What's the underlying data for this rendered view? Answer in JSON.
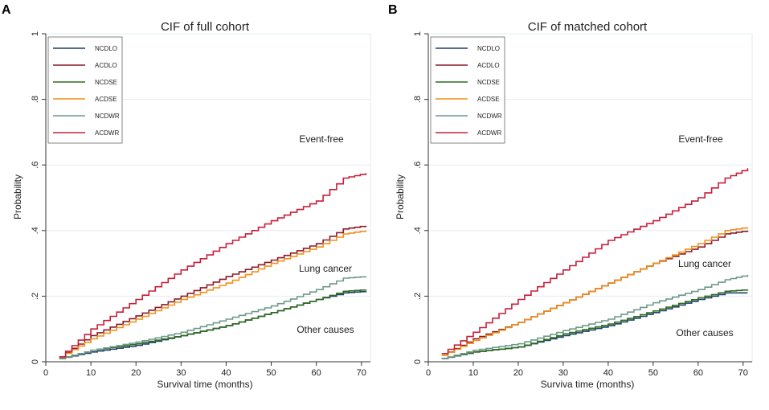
{
  "colors": {
    "NCDLO": "#1f3f6b",
    "ACDLO": "#8b1a2a",
    "NCDSE": "#2e6b1f",
    "ACDSE": "#f0901a",
    "NCDWR": "#6f9a8a",
    "ACDWR": "#c81e3a"
  },
  "chart_data": [
    {
      "panel": "A",
      "type": "line",
      "step": true,
      "title": "CIF of full cohort",
      "xlabel": "Survival time (months)",
      "ylabel": "Probability",
      "xlim": [
        0,
        72
      ],
      "ylim": [
        0,
        1
      ],
      "xticks": [
        "0",
        "10",
        "20",
        "30",
        "40",
        "50",
        "60",
        "70"
      ],
      "yticks": [
        "0",
        ".2",
        ".4",
        ".6",
        ".8",
        "1"
      ],
      "legend": [
        "NCDLO",
        "ACDLO",
        "NCDSE",
        "ACDSE",
        "NCDWR",
        "ACDWR"
      ],
      "annotations": [
        "Event-free",
        "Lung cancer",
        "Other causes"
      ],
      "series": [
        {
          "name": "NCDLO",
          "x": [
            3,
            10,
            20,
            30,
            40,
            50,
            60,
            66,
            71
          ],
          "values": [
            0.01,
            0.03,
            0.05,
            0.08,
            0.11,
            0.15,
            0.19,
            0.21,
            0.215
          ]
        },
        {
          "name": "ACDLO",
          "x": [
            3,
            10,
            20,
            30,
            40,
            50,
            60,
            66,
            71
          ],
          "values": [
            0.015,
            0.08,
            0.14,
            0.2,
            0.26,
            0.31,
            0.36,
            0.405,
            0.415
          ]
        },
        {
          "name": "NCDSE",
          "x": [
            3,
            10,
            20,
            30,
            40,
            50,
            60,
            66,
            71
          ],
          "values": [
            0.01,
            0.035,
            0.055,
            0.08,
            0.11,
            0.15,
            0.19,
            0.215,
            0.22
          ]
        },
        {
          "name": "ACDSE",
          "x": [
            3,
            10,
            20,
            30,
            40,
            50,
            60,
            66,
            71
          ],
          "values": [
            0.015,
            0.07,
            0.13,
            0.19,
            0.24,
            0.3,
            0.35,
            0.39,
            0.4
          ]
        },
        {
          "name": "NCDWR",
          "x": [
            3,
            10,
            20,
            30,
            40,
            50,
            60,
            66,
            71
          ],
          "values": [
            0.01,
            0.035,
            0.06,
            0.09,
            0.13,
            0.17,
            0.22,
            0.255,
            0.26
          ]
        },
        {
          "name": "ACDWR",
          "x": [
            3,
            10,
            20,
            30,
            40,
            50,
            60,
            66,
            71
          ],
          "values": [
            0.015,
            0.1,
            0.19,
            0.28,
            0.36,
            0.43,
            0.49,
            0.56,
            0.575
          ]
        }
      ]
    },
    {
      "panel": "B",
      "type": "line",
      "step": true,
      "title": "CIF of matched cohort",
      "xlabel": "Surviva time (months)",
      "ylabel": "Probability",
      "xlim": [
        0,
        72
      ],
      "ylim": [
        0,
        1
      ],
      "xticks": [
        "0",
        "10",
        "20",
        "30",
        "40",
        "50",
        "60",
        "70"
      ],
      "yticks": [
        "0",
        ".2",
        ".4",
        ".6",
        ".8",
        "1"
      ],
      "legend": [
        "NCDLO",
        "ACDLO",
        "NCDSE",
        "ACDSE",
        "NCDWR",
        "ACDWR"
      ],
      "annotations": [
        "Event-free",
        "Lung cancer",
        "Other causes"
      ],
      "series": [
        {
          "name": "NCDLO",
          "x": [
            3,
            10,
            20,
            30,
            40,
            50,
            60,
            66,
            71
          ],
          "values": [
            0.01,
            0.03,
            0.045,
            0.08,
            0.11,
            0.15,
            0.19,
            0.21,
            0.21
          ]
        },
        {
          "name": "ACDLO",
          "x": [
            3,
            10,
            20,
            30,
            40,
            50,
            60,
            66,
            71
          ],
          "values": [
            0.02,
            0.07,
            0.12,
            0.18,
            0.24,
            0.3,
            0.35,
            0.39,
            0.4
          ]
        },
        {
          "name": "NCDSE",
          "x": [
            3,
            10,
            20,
            30,
            40,
            50,
            60,
            66,
            71
          ],
          "values": [
            0.01,
            0.03,
            0.045,
            0.085,
            0.115,
            0.155,
            0.195,
            0.215,
            0.22
          ]
        },
        {
          "name": "ACDSE",
          "x": [
            3,
            10,
            20,
            30,
            40,
            50,
            60,
            66,
            71
          ],
          "values": [
            0.02,
            0.065,
            0.12,
            0.18,
            0.24,
            0.3,
            0.36,
            0.4,
            0.41
          ]
        },
        {
          "name": "NCDWR",
          "x": [
            3,
            10,
            20,
            30,
            40,
            50,
            60,
            66,
            71
          ],
          "values": [
            0.01,
            0.035,
            0.055,
            0.095,
            0.13,
            0.18,
            0.22,
            0.25,
            0.265
          ]
        },
        {
          "name": "ACDWR",
          "x": [
            3,
            10,
            20,
            30,
            40,
            50,
            60,
            66,
            71
          ],
          "values": [
            0.025,
            0.09,
            0.19,
            0.28,
            0.37,
            0.43,
            0.5,
            0.56,
            0.59
          ]
        }
      ]
    }
  ]
}
